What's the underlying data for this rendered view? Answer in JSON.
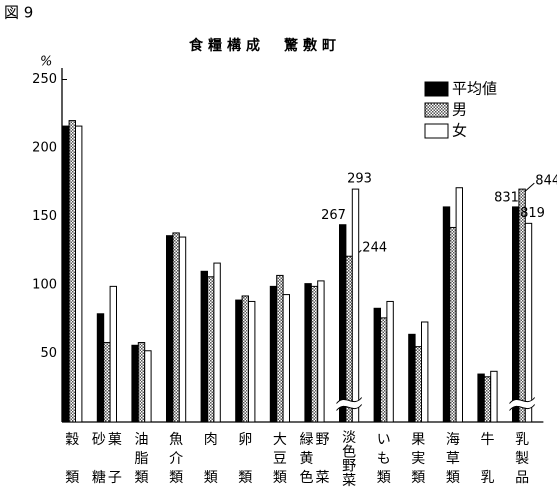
{
  "figure_label": "図 9",
  "chart_data": {
    "type": "bar",
    "title": "食糧構成　驚敷町",
    "y_unit": "%",
    "categories": [
      [
        "穀類"
      ],
      [
        "砂糖",
        "菓子"
      ],
      [
        "油脂類"
      ],
      [
        "魚介類"
      ],
      [
        "肉類"
      ],
      [
        "卵類"
      ],
      [
        "大豆類"
      ],
      [
        "緑黄色",
        "野菜"
      ],
      [
        "淡色野菜"
      ],
      [
        "いも類"
      ],
      [
        "果実類"
      ],
      [
        "海草類"
      ],
      [
        "牛乳"
      ],
      [
        "乳製品"
      ]
    ],
    "series": [
      {
        "name": "平均値",
        "color": "#000000",
        "values": [
          216,
          79,
          56,
          136,
          110,
          89,
          99,
          101,
          267,
          83,
          64,
          157,
          35,
          831
        ]
      },
      {
        "name": "男",
        "color": "#8a8a8a",
        "pattern": "checker",
        "values": [
          220,
          58,
          58,
          138,
          106,
          92,
          107,
          99,
          244,
          76,
          55,
          142,
          33,
          844
        ]
      },
      {
        "name": "女",
        "color": "#ffffff",
        "values": [
          216,
          99,
          52,
          135,
          116,
          88,
          93,
          103,
          293,
          88,
          73,
          171,
          37,
          819
        ]
      }
    ],
    "ylim": [
      0,
      250
    ],
    "yticks": [
      50,
      100,
      150,
      200,
      250
    ],
    "axis_break": true,
    "legend": "upper right"
  }
}
